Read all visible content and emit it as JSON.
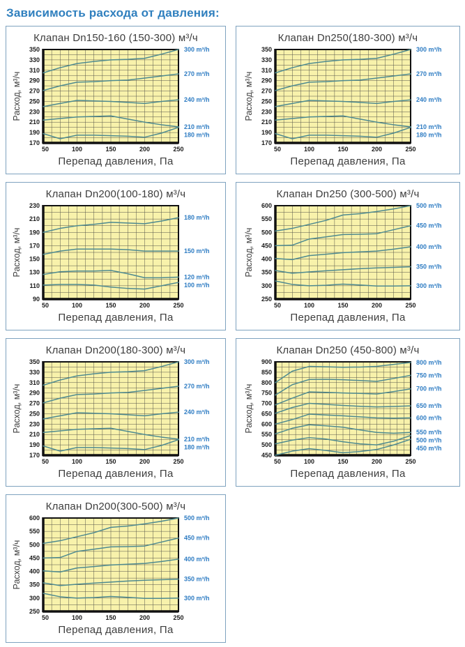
{
  "page": {
    "title": "Зависимость расхода от давления:"
  },
  "colors": {
    "accent_blue": "#2f7fbe",
    "series_label_blue": "#2e7cc3",
    "line_teal": "#4e8a90",
    "grid": "#55544a",
    "plot_bg": "#f8f2ab",
    "panel_border": "#7ea2bf",
    "title_gray": "#3d3d3d",
    "tick_black": "#1c1c1c"
  },
  "chart_data": [
    {
      "type": "line",
      "title": "Клапан Dn150-160 (150-300) м³/ч",
      "xlabel": "Перепад давления, Па",
      "ylabel": "Расход, м³/ч",
      "legend_position": "right",
      "grid": true,
      "x": [
        50,
        75,
        100,
        125,
        150,
        175,
        200,
        225,
        250
      ],
      "xticks": [
        50,
        100,
        150,
        200,
        250
      ],
      "xlim": [
        50,
        250
      ],
      "x_minor_step": 12.5,
      "ylim": [
        170,
        350
      ],
      "yticks": [
        170,
        190,
        210,
        230,
        250,
        270,
        290,
        310,
        330,
        350
      ],
      "y_minor_step": 10,
      "series": [
        {
          "name": "300 m³/h",
          "values": [
            305,
            315,
            323,
            327,
            330,
            331,
            333,
            341,
            350
          ]
        },
        {
          "name": "270 m³/h",
          "values": [
            271,
            280,
            287,
            288,
            290,
            291,
            295,
            299,
            303
          ]
        },
        {
          "name": "240 m³/h",
          "values": [
            240,
            246,
            252,
            251,
            250,
            248,
            246,
            250,
            253
          ]
        },
        {
          "name": "210 m³/h",
          "values": [
            214,
            217,
            220,
            221,
            222,
            216,
            210,
            205,
            201
          ]
        },
        {
          "name": "180 m³/h",
          "values": [
            188,
            178,
            185,
            185,
            184,
            183,
            181,
            189,
            200
          ]
        }
      ]
    },
    {
      "type": "line",
      "title": "Клапан Dn250(180-300) м³/ч",
      "xlabel": "Перепад давления, Па",
      "ylabel": "Расход, м³/ч",
      "legend_position": "right",
      "grid": true,
      "x": [
        50,
        75,
        100,
        125,
        150,
        175,
        200,
        225,
        250
      ],
      "xticks": [
        50,
        100,
        150,
        200,
        250
      ],
      "xlim": [
        50,
        250
      ],
      "x_minor_step": 12.5,
      "ylim": [
        170,
        350
      ],
      "yticks": [
        170,
        190,
        210,
        230,
        250,
        270,
        290,
        310,
        330,
        350
      ],
      "y_minor_step": 10,
      "series": [
        {
          "name": "300 m³/h",
          "values": [
            305,
            315,
            323,
            327,
            330,
            331,
            333,
            341,
            350
          ]
        },
        {
          "name": "270 m³/h",
          "values": [
            271,
            280,
            287,
            288,
            290,
            291,
            295,
            299,
            303
          ]
        },
        {
          "name": "240 m³/h",
          "values": [
            240,
            246,
            252,
            251,
            250,
            248,
            246,
            250,
            253
          ]
        },
        {
          "name": "210 m³/h",
          "values": [
            214,
            217,
            220,
            221,
            222,
            216,
            210,
            205,
            201
          ]
        },
        {
          "name": "180 m³/h",
          "values": [
            188,
            178,
            185,
            185,
            184,
            183,
            181,
            189,
            200
          ]
        }
      ]
    },
    {
      "type": "line",
      "title": "Клапан Dn200(100-180) м³/ч",
      "xlabel": "Перепад давления, Па",
      "ylabel": "Расход, м³/ч",
      "legend_position": "right",
      "grid": true,
      "x": [
        50,
        75,
        100,
        125,
        150,
        175,
        200,
        225,
        250
      ],
      "xticks": [
        50,
        100,
        150,
        200,
        250
      ],
      "xlim": [
        50,
        250
      ],
      "x_minor_step": 12.5,
      "ylim": [
        90,
        230
      ],
      "yticks": [
        90,
        110,
        130,
        150,
        170,
        190,
        210,
        230
      ],
      "y_minor_step": 10,
      "series": [
        {
          "name": "180 m³/h",
          "values": [
            190,
            196,
            200,
            202,
            205,
            204,
            203,
            207,
            212
          ]
        },
        {
          "name": "150 m³/h",
          "values": [
            157,
            162,
            165,
            165,
            165,
            164,
            162,
            162,
            162
          ]
        },
        {
          "name": "120 m³/h",
          "values": [
            127,
            131,
            132,
            132,
            133,
            128,
            122,
            122,
            123
          ]
        },
        {
          "name": "100 m³/h",
          "values": [
            111,
            112,
            112,
            111,
            108,
            106,
            105,
            110,
            115
          ]
        }
      ]
    },
    {
      "type": "line",
      "title": "Клапан Dn250 (300-500) м³/ч",
      "xlabel": "Перепад давления, Па",
      "ylabel": "Расход, м³/ч",
      "legend_position": "right",
      "grid": true,
      "x": [
        50,
        75,
        100,
        125,
        150,
        175,
        200,
        225,
        250
      ],
      "xticks": [
        50,
        100,
        150,
        200,
        250
      ],
      "xlim": [
        50,
        250
      ],
      "x_minor_step": 12.5,
      "ylim": [
        250,
        600
      ],
      "yticks": [
        250,
        300,
        350,
        400,
        450,
        500,
        550,
        600
      ],
      "y_minor_step": 25,
      "series": [
        {
          "name": "500 m³/h",
          "values": [
            505,
            515,
            530,
            545,
            565,
            570,
            578,
            588,
            600
          ]
        },
        {
          "name": "450 m³/h",
          "values": [
            450,
            452,
            475,
            483,
            492,
            493,
            495,
            510,
            525
          ]
        },
        {
          "name": "400 m³/h",
          "values": [
            402,
            398,
            413,
            418,
            424,
            427,
            430,
            437,
            446
          ]
        },
        {
          "name": "350 m³/h",
          "values": [
            357,
            347,
            352,
            356,
            360,
            364,
            367,
            369,
            371
          ]
        },
        {
          "name": "300 m³/h",
          "values": [
            318,
            305,
            300,
            302,
            306,
            303,
            299,
            299,
            300
          ]
        }
      ]
    },
    {
      "type": "line",
      "title": "Клапан Dn200(180-300) м³/ч",
      "xlabel": "Перепад давления, Па",
      "ylabel": "Расход, м³/ч",
      "legend_position": "right",
      "grid": true,
      "x": [
        50,
        75,
        100,
        125,
        150,
        175,
        200,
        225,
        250
      ],
      "xticks": [
        50,
        100,
        150,
        200,
        250
      ],
      "xlim": [
        50,
        250
      ],
      "x_minor_step": 12.5,
      "ylim": [
        170,
        350
      ],
      "yticks": [
        170,
        190,
        210,
        230,
        250,
        270,
        290,
        310,
        330,
        350
      ],
      "y_minor_step": 10,
      "series": [
        {
          "name": "300 m³/h",
          "values": [
            305,
            315,
            323,
            327,
            330,
            331,
            333,
            341,
            350
          ]
        },
        {
          "name": "270 m³/h",
          "values": [
            271,
            280,
            287,
            288,
            290,
            291,
            295,
            299,
            303
          ]
        },
        {
          "name": "240 m³/h",
          "values": [
            240,
            246,
            252,
            251,
            250,
            248,
            246,
            250,
            253
          ]
        },
        {
          "name": "210 m³/h",
          "values": [
            214,
            217,
            220,
            221,
            222,
            216,
            210,
            205,
            201
          ]
        },
        {
          "name": "180 m³/h",
          "values": [
            188,
            178,
            185,
            185,
            184,
            183,
            181,
            189,
            200
          ]
        }
      ]
    },
    {
      "type": "line",
      "title": "Клапан Dn250 (450-800) м³/ч",
      "xlabel": "Перепад давления, Па",
      "ylabel": "Расход, м³/ч",
      "legend_position": "right",
      "grid": true,
      "x": [
        50,
        75,
        100,
        125,
        150,
        175,
        200,
        225,
        250
      ],
      "xticks": [
        50,
        100,
        150,
        200,
        250
      ],
      "xlim": [
        50,
        250
      ],
      "x_minor_step": 10,
      "ylim": [
        450,
        900
      ],
      "yticks": [
        450,
        500,
        550,
        600,
        650,
        700,
        750,
        800,
        850,
        900
      ],
      "y_minor_step": 25,
      "series": [
        {
          "name": "800 m³/h",
          "values": [
            800,
            855,
            878,
            876,
            874,
            875,
            878,
            888,
            897
          ]
        },
        {
          "name": "750 m³/h",
          "values": [
            740,
            790,
            815,
            816,
            814,
            810,
            806,
            820,
            835
          ]
        },
        {
          "name": "700 m³/h",
          "values": [
            693,
            725,
            755,
            753,
            750,
            748,
            745,
            757,
            770
          ]
        },
        {
          "name": "650 m³/h",
          "values": [
            652,
            680,
            700,
            695,
            690,
            686,
            683,
            685,
            688
          ]
        },
        {
          "name": "600 m³/h",
          "values": [
            600,
            622,
            648,
            644,
            640,
            635,
            630,
            629,
            630
          ]
        },
        {
          "name": "550 m³/h",
          "values": [
            553,
            580,
            597,
            592,
            585,
            572,
            560,
            556,
            560
          ]
        },
        {
          "name": "500 m³/h",
          "values": [
            505,
            523,
            535,
            528,
            515,
            505,
            500,
            518,
            545
          ]
        },
        {
          "name": "450 m³/h",
          "values": [
            450,
            470,
            482,
            473,
            462,
            468,
            478,
            500,
            527
          ]
        }
      ]
    },
    {
      "type": "line",
      "title": "Клапан Dn200(300-500) м³/ч",
      "xlabel": "Перепад давления, Па",
      "ylabel": "Расход, м³/ч",
      "legend_position": "right",
      "grid": true,
      "x": [
        50,
        75,
        100,
        125,
        150,
        175,
        200,
        225,
        250
      ],
      "xticks": [
        50,
        100,
        150,
        200,
        250
      ],
      "xlim": [
        50,
        250
      ],
      "x_minor_step": 12.5,
      "ylim": [
        250,
        600
      ],
      "yticks": [
        250,
        300,
        350,
        400,
        450,
        500,
        550,
        600
      ],
      "y_minor_step": 25,
      "series": [
        {
          "name": "500 m³/h",
          "values": [
            505,
            515,
            530,
            545,
            565,
            570,
            578,
            588,
            600
          ]
        },
        {
          "name": "450 m³/h",
          "values": [
            450,
            452,
            475,
            483,
            492,
            493,
            495,
            510,
            525
          ]
        },
        {
          "name": "400 m³/h",
          "values": [
            402,
            398,
            413,
            418,
            424,
            427,
            430,
            437,
            446
          ]
        },
        {
          "name": "350 m³/h",
          "values": [
            357,
            347,
            352,
            356,
            360,
            364,
            367,
            369,
            371
          ]
        },
        {
          "name": "300 m³/h",
          "values": [
            318,
            305,
            300,
            302,
            306,
            303,
            299,
            299,
            300
          ]
        }
      ]
    }
  ]
}
